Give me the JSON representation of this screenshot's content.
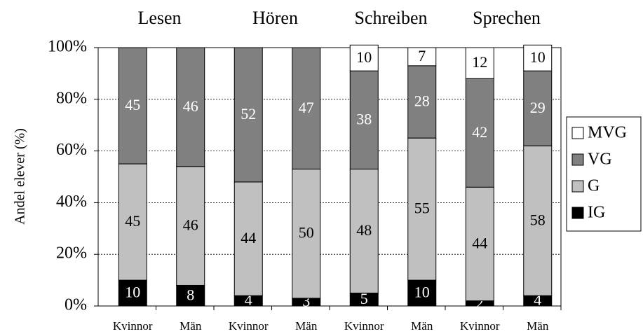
{
  "chart_data": {
    "type": "stacked_bar",
    "ylabel": "Andel elever (%)",
    "groups": [
      "Lesen",
      "Hören",
      "Schreiben",
      "Sprechen"
    ],
    "categories": [
      "Kvinnor",
      "Män",
      "Kvinnor",
      "Män",
      "Kvinnor",
      "Män",
      "Kvinnor",
      "Män"
    ],
    "series": [
      {
        "name": "IG",
        "color": "#000000",
        "values": [
          10,
          8,
          4,
          3,
          5,
          10,
          2,
          4
        ]
      },
      {
        "name": "G",
        "color": "#c0c0c0",
        "values": [
          45,
          46,
          44,
          50,
          48,
          55,
          44,
          58
        ]
      },
      {
        "name": "VG",
        "color": "#808080",
        "values": [
          45,
          46,
          52,
          47,
          38,
          28,
          42,
          29
        ]
      },
      {
        "name": "MVG",
        "color": "#ffffff",
        "values": [
          0,
          0,
          0,
          0,
          10,
          7,
          12,
          10
        ]
      }
    ],
    "ylim": [
      0,
      100
    ],
    "yticks": [
      {
        "value": 0,
        "label": "0%"
      },
      {
        "value": 20,
        "label": "20%"
      },
      {
        "value": 40,
        "label": "40%"
      },
      {
        "value": 60,
        "label": "60%"
      },
      {
        "value": 80,
        "label": "80%"
      },
      {
        "value": 100,
        "label": "100%"
      }
    ],
    "grid": true,
    "legend": "right"
  }
}
